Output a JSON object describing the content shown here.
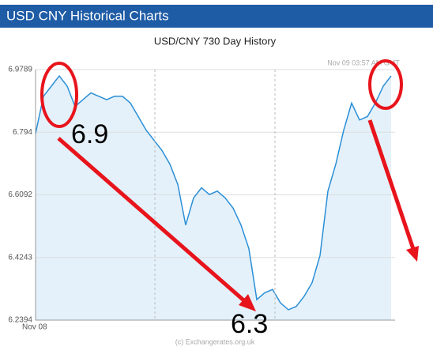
{
  "header": {
    "title": "USD CNY Historical Charts"
  },
  "chart_data": {
    "type": "line",
    "title": "USD/CNY  730 Day History",
    "timestamp": "Nov 09  03:57 AM GMT",
    "x_start_label": "Nov 08",
    "footer": "(c) Exchangerates.org.uk",
    "color": "#2b8fd6",
    "fill": "#e4f1fa",
    "values": [
      6.79,
      6.9,
      6.93,
      6.96,
      6.93,
      6.87,
      6.89,
      6.91,
      6.9,
      6.89,
      6.9,
      6.9,
      6.88,
      6.84,
      6.8,
      6.77,
      6.74,
      6.7,
      6.64,
      6.52,
      6.6,
      6.63,
      6.61,
      6.62,
      6.6,
      6.57,
      6.52,
      6.45,
      6.3,
      6.32,
      6.33,
      6.29,
      6.27,
      6.28,
      6.31,
      6.35,
      6.43,
      6.62,
      6.7,
      6.8,
      6.88,
      6.83,
      6.84,
      6.88,
      6.93,
      6.96
    ],
    "ylim": [
      6.2394,
      6.9789
    ],
    "yticks": [
      6.2394,
      6.4243,
      6.6092,
      6.794,
      6.9789
    ],
    "annotations": [
      "6.9",
      "6.3"
    ]
  }
}
